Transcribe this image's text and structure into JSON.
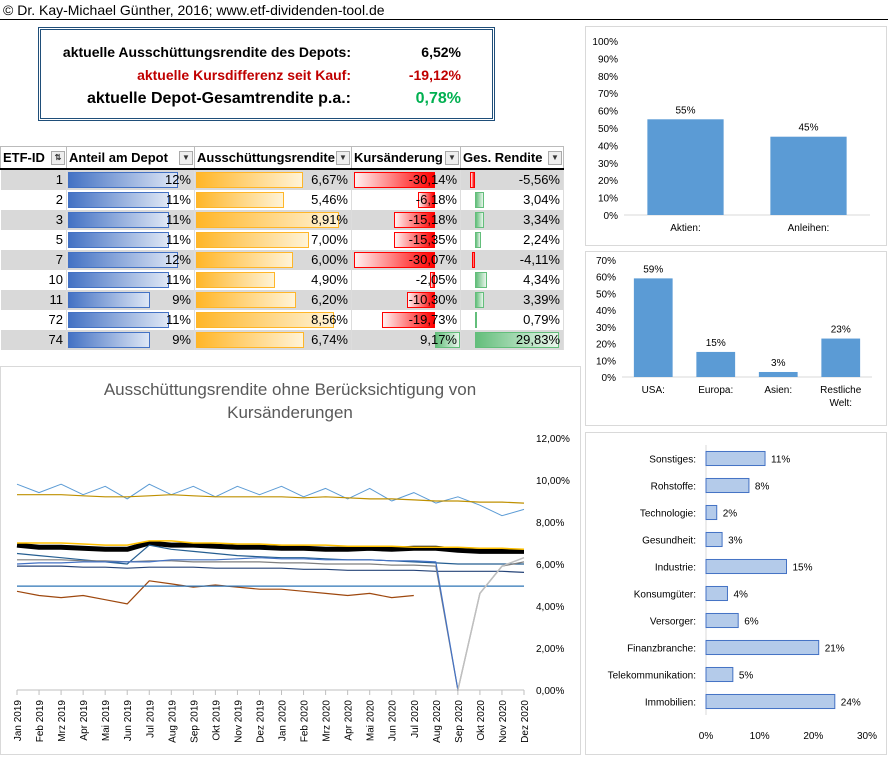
{
  "header": {
    "copyright": "© Dr. Kay-Michael Günther, 2016; www.etf-dividenden-tool.de"
  },
  "kpis": [
    {
      "label": "aktuelle Ausschüttungsrendite des Depots:",
      "value": "6,52%",
      "color": "#000000"
    },
    {
      "label": "aktuelle Kursdifferenz seit Kauf:",
      "value": "-19,12%",
      "color": "#c00000"
    },
    {
      "label": "aktuelle Depot-Gesamtrendite p.a.:",
      "value": "0,78%",
      "color": "#00b050"
    }
  ],
  "table": {
    "columns": [
      "ETF-ID",
      "Anteil am Depot",
      "Ausschüttungsrendite",
      "Kursänderung",
      "Ges. Rendite"
    ],
    "rows": [
      {
        "id": "1",
        "anteil": "12%",
        "aus": "6,67%",
        "kurs": "-30,14%",
        "ges": "-5,56%",
        "anteil_v": 12,
        "aus_v": 6.67,
        "kurs_v": -30.14,
        "ges_v": -5.56
      },
      {
        "id": "2",
        "anteil": "11%",
        "aus": "5,46%",
        "kurs": "-6,18%",
        "ges": "3,04%",
        "anteil_v": 11,
        "aus_v": 5.46,
        "kurs_v": -6.18,
        "ges_v": 3.04
      },
      {
        "id": "3",
        "anteil": "11%",
        "aus": "8,91%",
        "kurs": "-15,18%",
        "ges": "3,34%",
        "anteil_v": 11,
        "aus_v": 8.91,
        "kurs_v": -15.18,
        "ges_v": 3.34
      },
      {
        "id": "5",
        "anteil": "11%",
        "aus": "7,00%",
        "kurs": "-15,35%",
        "ges": "2,24%",
        "anteil_v": 11,
        "aus_v": 7.0,
        "kurs_v": -15.35,
        "ges_v": 2.24
      },
      {
        "id": "7",
        "anteil": "12%",
        "aus": "6,00%",
        "kurs": "-30,07%",
        "ges": "-4,11%",
        "anteil_v": 12,
        "aus_v": 6.0,
        "kurs_v": -30.07,
        "ges_v": -4.11
      },
      {
        "id": "10",
        "anteil": "11%",
        "aus": "4,90%",
        "kurs": "-2,05%",
        "ges": "4,34%",
        "anteil_v": 11,
        "aus_v": 4.9,
        "kurs_v": -2.05,
        "ges_v": 4.34
      },
      {
        "id": "11",
        "anteil": "9%",
        "aus": "6,20%",
        "kurs": "-10,30%",
        "ges": "3,39%",
        "anteil_v": 9,
        "aus_v": 6.2,
        "kurs_v": -10.3,
        "ges_v": 3.39
      },
      {
        "id": "72",
        "anteil": "11%",
        "aus": "8,56%",
        "kurs": "-19,73%",
        "ges": "0,79%",
        "anteil_v": 11,
        "aus_v": 8.56,
        "kurs_v": -19.73,
        "ges_v": 0.79
      },
      {
        "id": "74",
        "anteil": "9%",
        "aus": "6,74%",
        "kurs": "9,17%",
        "ges": "29,83%",
        "anteil_v": 9,
        "aus_v": 6.74,
        "kurs_v": 9.17,
        "ges_v": 29.83
      }
    ]
  },
  "colors": {
    "blue": "#5b9bd5",
    "kpi_border": "#1f4e79"
  },
  "chart_data": [
    {
      "type": "bar",
      "categories": [
        "Aktien:",
        "Anleihen:"
      ],
      "values": [
        55,
        45
      ],
      "labels": [
        "55%",
        "45%"
      ],
      "ylim": [
        0,
        100
      ],
      "yticks": [
        "0%",
        "10%",
        "20%",
        "30%",
        "40%",
        "50%",
        "60%",
        "70%",
        "80%",
        "90%",
        "100%"
      ]
    },
    {
      "type": "bar",
      "categories": [
        "USA:",
        "Europa:",
        "Asien:",
        "Restliche Welt:"
      ],
      "values": [
        59,
        15,
        3,
        23
      ],
      "labels": [
        "59%",
        "15%",
        "3%",
        "23%"
      ],
      "ylim": [
        0,
        70
      ],
      "yticks": [
        "0%",
        "10%",
        "20%",
        "30%",
        "40%",
        "50%",
        "60%",
        "70%"
      ]
    },
    {
      "type": "line",
      "title": "Ausschüttungsrendite ohne Berücksichtigung von Kursänderungen",
      "x": [
        "Jan 2019",
        "Feb 2019",
        "Mrz 2019",
        "Apr 2019",
        "Mai 2019",
        "Jun 2019",
        "Jul 2019",
        "Aug 2019",
        "Sep 2019",
        "Okt 2019",
        "Nov 2019",
        "Dez 2019",
        "Jan 2020",
        "Feb 2020",
        "Mrz 2020",
        "Apr 2020",
        "Mai 2020",
        "Jun 2020",
        "Jul 2020",
        "Aug 2020",
        "Sep 2020",
        "Okt 2020",
        "Nov 2020",
        "Dez 2020"
      ],
      "ylim": [
        0,
        12
      ],
      "yticks": [
        "0,00%",
        "2,00%",
        "4,00%",
        "6,00%",
        "8,00%",
        "10,00%",
        "12,00%"
      ],
      "series": [
        {
          "color": "#5b9bd5",
          "width": 1,
          "values": [
            9.8,
            9.4,
            9.8,
            9.3,
            9.7,
            9.1,
            9.8,
            9.3,
            9.7,
            9.2,
            9.7,
            9.3,
            9.7,
            9.2,
            9.6,
            9.1,
            9.6,
            9.0,
            9.4,
            8.9,
            9.2,
            8.8,
            8.3,
            8.6
          ]
        },
        {
          "color": "#bf9000",
          "width": 1.2,
          "values": [
            9.3,
            9.3,
            9.3,
            9.25,
            9.2,
            9.2,
            9.25,
            9.3,
            9.25,
            9.2,
            9.2,
            9.2,
            9.2,
            9.15,
            9.2,
            9.15,
            9.1,
            9.1,
            9.05,
            9.0,
            9.0,
            8.95,
            8.95,
            8.9
          ]
        },
        {
          "color": "#000000",
          "width": 5,
          "values": [
            6.9,
            6.8,
            6.8,
            6.75,
            6.7,
            6.7,
            7.0,
            6.9,
            6.9,
            6.85,
            6.8,
            6.8,
            6.75,
            6.75,
            6.7,
            6.7,
            6.75,
            6.7,
            6.75,
            6.75,
            6.65,
            6.6,
            6.6,
            6.6
          ]
        },
        {
          "color": "#ffc000",
          "width": 1.5,
          "values": [
            7.0,
            7.0,
            7.0,
            6.95,
            6.9,
            6.9,
            7.1,
            7.1,
            7.0,
            7.0,
            6.95,
            6.95,
            6.9,
            6.9,
            6.9,
            6.85,
            6.85,
            6.85,
            6.8,
            6.8,
            6.8,
            6.75,
            6.75,
            6.7
          ]
        },
        {
          "color": "#255e91",
          "width": 1.2,
          "values": [
            6.5,
            6.4,
            6.3,
            6.2,
            6.1,
            6.0,
            6.9,
            6.7,
            6.6,
            6.5,
            6.4,
            6.35,
            6.3,
            6.3,
            6.25,
            6.2,
            6.2,
            6.15,
            6.1,
            6.05,
            6.0,
            6.0,
            6.0,
            6.0
          ]
        },
        {
          "color": "#264478",
          "width": 1.2,
          "values": [
            5.9,
            5.9,
            5.9,
            5.85,
            5.85,
            5.8,
            5.85,
            5.85,
            5.85,
            5.8,
            5.8,
            5.8,
            5.8,
            5.75,
            5.75,
            5.7,
            5.7,
            5.7,
            5.7,
            5.65,
            5.65,
            5.65,
            5.65,
            5.6
          ]
        },
        {
          "color": "#7f7f7f",
          "width": 1.2,
          "values": [
            6.2,
            6.2,
            6.2,
            6.15,
            6.15,
            6.1,
            6.15,
            6.15,
            6.1,
            6.1,
            6.1,
            6.1,
            6.05,
            6.05,
            6.0,
            6.0,
            6.0,
            5.95,
            5.95,
            5.9,
            0.0,
            4.6,
            5.9,
            6.1
          ]
        },
        {
          "color": "#9e480e",
          "width": 1.2,
          "values": [
            4.7,
            4.5,
            4.4,
            4.5,
            4.3,
            4.1,
            5.2,
            5.05,
            4.9,
            5.0,
            4.9,
            4.8,
            4.8,
            4.7,
            4.6,
            4.5,
            4.6,
            4.4,
            4.5,
            null,
            null,
            null,
            null,
            null
          ]
        },
        {
          "color": "#2e75b6",
          "width": 1.2,
          "values": [
            4.95,
            4.95,
            4.95,
            4.95,
            4.95,
            4.95,
            4.95,
            4.95,
            4.95,
            4.95,
            4.95,
            4.95,
            4.95,
            4.95,
            4.95,
            4.95,
            4.95,
            4.95,
            4.95,
            4.95,
            4.95,
            4.95,
            4.95,
            4.95
          ]
        },
        {
          "color": "#4472c4",
          "width": 1.2,
          "values": [
            6.0,
            6.05,
            6.05,
            6.1,
            6.1,
            6.1,
            6.1,
            6.2,
            6.2,
            6.2,
            6.25,
            6.3,
            6.25,
            6.25,
            6.2,
            6.2,
            6.2,
            6.15,
            6.15,
            6.1,
            0.0,
            null,
            null,
            null
          ]
        },
        {
          "color": "#bfbfbf",
          "width": 1.5,
          "values": [
            null,
            null,
            null,
            null,
            null,
            null,
            null,
            null,
            null,
            null,
            null,
            null,
            null,
            null,
            null,
            null,
            null,
            null,
            null,
            null,
            0.0,
            4.6,
            5.9,
            6.3
          ]
        }
      ]
    },
    {
      "type": "bar",
      "orientation": "horizontal",
      "categories": [
        "Sonstiges:",
        "Rohstoffe:",
        "Technologie:",
        "Gesundheit:",
        "Industrie:",
        "Konsumgüter:",
        "Versorger:",
        "Finanzbranche:",
        "Telekommunikation:",
        "Immobilien:"
      ],
      "values": [
        11,
        8,
        2,
        3,
        15,
        4,
        6,
        21,
        5,
        24
      ],
      "labels": [
        "11%",
        "8%",
        "2%",
        "3%",
        "15%",
        "4%",
        "6%",
        "21%",
        "5%",
        "24%"
      ],
      "xlim": [
        0,
        30
      ],
      "xticks": [
        "0%",
        "10%",
        "20%",
        "30%"
      ]
    }
  ]
}
